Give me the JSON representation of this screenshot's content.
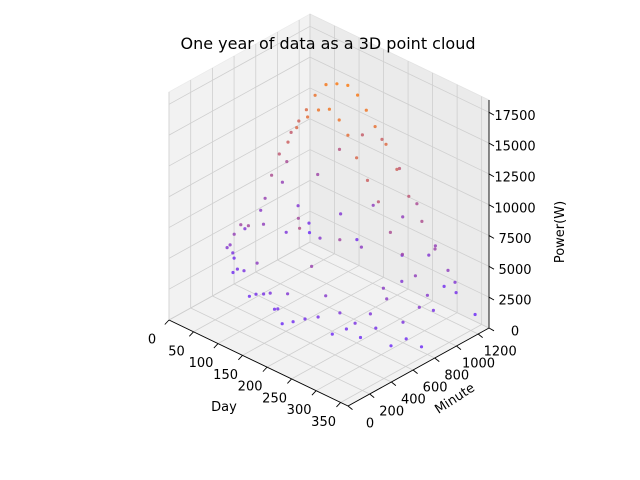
{
  "chart_data": {
    "type": "scatter",
    "projection": "3d",
    "title": "One year of data as a 3D point cloud",
    "xlabel": "Day",
    "ylabel": "Minute",
    "zlabel": "Power(W)",
    "xlim": [
      0,
      365
    ],
    "ylim": [
      0,
      1300
    ],
    "zlim": [
      0,
      18500
    ],
    "xticks": [
      0,
      50,
      100,
      150,
      200,
      250,
      300,
      350
    ],
    "yticks": [
      0,
      200,
      400,
      600,
      800,
      1000,
      1200
    ],
    "zticks": [
      0,
      2500,
      5000,
      7500,
      10000,
      12500,
      15000,
      17500
    ],
    "grid": true,
    "colormap": {
      "low": "#6a2cff",
      "high": "#ff7f0e"
    },
    "series": [
      {
        "columns": [
          "day",
          "minute",
          "power_w"
        ],
        "points": [
          [
            0,
            700,
            4000
          ],
          [
            15,
            520,
            3200
          ],
          [
            30,
            400,
            4500
          ],
          [
            45,
            360,
            5200
          ],
          [
            60,
            330,
            6500
          ],
          [
            80,
            300,
            7800
          ],
          [
            100,
            280,
            8200
          ],
          [
            120,
            270,
            5600
          ],
          [
            140,
            300,
            3400
          ],
          [
            160,
            280,
            2600
          ],
          [
            180,
            280,
            4200
          ],
          [
            200,
            300,
            9800
          ],
          [
            220,
            320,
            7000
          ],
          [
            240,
            360,
            4800
          ],
          [
            260,
            400,
            3600
          ],
          [
            280,
            450,
            2900
          ],
          [
            300,
            500,
            3800
          ],
          [
            320,
            560,
            5100
          ],
          [
            340,
            620,
            3300
          ],
          [
            360,
            680,
            4600
          ],
          [
            0,
            600,
            2100
          ],
          [
            20,
            500,
            1800
          ],
          [
            40,
            450,
            2700
          ],
          [
            60,
            420,
            3100
          ],
          [
            80,
            380,
            1600
          ],
          [
            100,
            350,
            2300
          ],
          [
            120,
            330,
            2800
          ],
          [
            140,
            340,
            1900
          ],
          [
            160,
            320,
            1200
          ],
          [
            180,
            330,
            1700
          ],
          [
            200,
            350,
            2200
          ],
          [
            220,
            380,
            2600
          ],
          [
            240,
            420,
            1400
          ],
          [
            260,
            460,
            2000
          ],
          [
            280,
            500,
            1500
          ],
          [
            300,
            550,
            2400
          ],
          [
            320,
            600,
            1100
          ],
          [
            340,
            650,
            1800
          ],
          [
            360,
            700,
            1300
          ],
          [
            10,
            1000,
            6500
          ],
          [
            30,
            950,
            8800
          ],
          [
            50,
            900,
            11800
          ],
          [
            70,
            880,
            13200
          ],
          [
            90,
            860,
            14600
          ],
          [
            110,
            850,
            16200
          ],
          [
            130,
            860,
            17400
          ],
          [
            150,
            870,
            17800
          ],
          [
            170,
            880,
            18000
          ],
          [
            190,
            880,
            17600
          ],
          [
            210,
            870,
            16800
          ],
          [
            230,
            860,
            15900
          ],
          [
            250,
            870,
            14800
          ],
          [
            270,
            880,
            13100
          ],
          [
            290,
            900,
            11200
          ],
          [
            310,
            930,
            9400
          ],
          [
            330,
            960,
            7400
          ],
          [
            350,
            990,
            5900
          ],
          [
            10,
            800,
            5200
          ],
          [
            30,
            750,
            6800
          ],
          [
            50,
            720,
            9200
          ],
          [
            70,
            700,
            11400
          ],
          [
            90,
            690,
            12800
          ],
          [
            110,
            680,
            14400
          ],
          [
            130,
            690,
            15600
          ],
          [
            150,
            700,
            16500
          ],
          [
            170,
            710,
            16900
          ],
          [
            190,
            710,
            16400
          ],
          [
            210,
            700,
            15600
          ],
          [
            230,
            690,
            14200
          ],
          [
            250,
            700,
            12700
          ],
          [
            270,
            710,
            11300
          ],
          [
            290,
            730,
            9100
          ],
          [
            310,
            750,
            7600
          ],
          [
            330,
            780,
            6100
          ],
          [
            350,
            800,
            4800
          ],
          [
            20,
            1100,
            4300
          ],
          [
            60,
            1100,
            7600
          ],
          [
            100,
            1120,
            10300
          ],
          [
            140,
            1150,
            12100
          ],
          [
            180,
            1150,
            12500
          ],
          [
            220,
            1130,
            11000
          ],
          [
            260,
            1110,
            9000
          ],
          [
            300,
            1100,
            6400
          ],
          [
            340,
            1100,
            4200
          ],
          [
            20,
            1200,
            2400
          ],
          [
            80,
            1220,
            4200
          ],
          [
            140,
            1250,
            5900
          ],
          [
            200,
            1250,
            6100
          ],
          [
            260,
            1220,
            4300
          ],
          [
            320,
            1200,
            2500
          ],
          [
            10,
            1250,
            1200
          ],
          [
            100,
            1280,
            2200
          ],
          [
            190,
            1290,
            2600
          ],
          [
            280,
            1270,
            1900
          ],
          [
            350,
            1240,
            1100
          ],
          [
            40,
            900,
            3500
          ],
          [
            120,
            850,
            4800
          ],
          [
            200,
            870,
            5500
          ],
          [
            280,
            880,
            4200
          ],
          [
            340,
            900,
            2900
          ],
          [
            60,
            600,
            6000
          ],
          [
            140,
            560,
            8200
          ],
          [
            220,
            580,
            7900
          ],
          [
            300,
            620,
            5300
          ]
        ]
      }
    ]
  }
}
